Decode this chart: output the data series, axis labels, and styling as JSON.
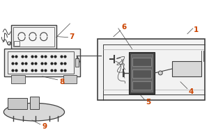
{
  "bg_color": "#ffffff",
  "line_color": "#404040",
  "dark_color": "#222222",
  "gray_color": "#aaaaaa",
  "label_color": "#cc4400",
  "figsize": [
    3.0,
    2.0
  ],
  "dpi": 100
}
